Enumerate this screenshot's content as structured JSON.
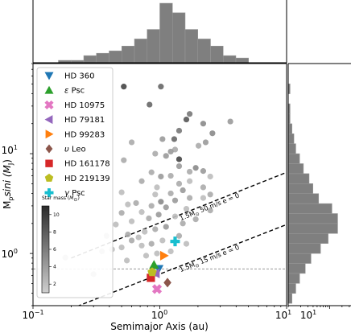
{
  "chart_data": {
    "type": "scatter",
    "xlabel": "Semimajor Axis (au)",
    "ylabel": "M_p sin i (M_J)",
    "ylabel_parts": {
      "main": "M",
      "sub": "p",
      "tail": "sini (M",
      "sub2": "J",
      "close": ")"
    },
    "xscale": "log",
    "yscale": "log",
    "xlim": [
      0.1,
      10
    ],
    "ylim": [
      0.3,
      80
    ],
    "x_ticks": [
      {
        "value": 0.1,
        "base": "10",
        "exp": "−1"
      },
      {
        "value": 1,
        "base": "10",
        "exp": "0"
      },
      {
        "value": 10,
        "base": "10",
        "exp": "1"
      }
    ],
    "y_ticks": [
      {
        "value": 1,
        "base": "10",
        "exp": "0"
      },
      {
        "value": 10,
        "base": "10",
        "exp": "1"
      }
    ],
    "ref_line": {
      "y": 0.7
    },
    "sensitivity_lines": [
      {
        "label": "1.5M⊙ 50 m/s e = 0",
        "label_parts": {
          "a": "1.5M",
          "sun": "⊙",
          "b": " 50 m/s e = 0"
        },
        "points": [
          [
            0.2,
            0.9
          ],
          [
            10,
            6.5
          ]
        ],
        "label_at": [
          2.5,
          2.8
        ]
      },
      {
        "label": "1.5M⊙ 15 m/s e = 0",
        "label_parts": {
          "a": "1.5M",
          "sun": "⊙",
          "b": " 15 m/s e = 0"
        },
        "points": [
          [
            0.2,
            0.28
          ],
          [
            10,
            1.95
          ]
        ],
        "label_at": [
          2.5,
          0.85
        ]
      }
    ],
    "background_points": [
      [
        0.52,
        47,
        9
      ],
      [
        1.02,
        47,
        7
      ],
      [
        0.83,
        31,
        7
      ],
      [
        1.72,
        25,
        6
      ],
      [
        1.62,
        22,
        8
      ],
      [
        2.2,
        20,
        5
      ],
      [
        3.6,
        21,
        4
      ],
      [
        1.42,
        17,
        6
      ],
      [
        1.05,
        14,
        4
      ],
      [
        1.3,
        14,
        7
      ],
      [
        0.6,
        13,
        3
      ],
      [
        2.6,
        16,
        5
      ],
      [
        2.3,
        13,
        4
      ],
      [
        2.02,
        12,
        3
      ],
      [
        1.32,
        11,
        3
      ],
      [
        1.22,
        10.5,
        4
      ],
      [
        0.92,
        10,
        3
      ],
      [
        1.12,
        9.5,
        4
      ],
      [
        1.42,
        8.8,
        9
      ],
      [
        0.52,
        8.6,
        3
      ],
      [
        1.42,
        7.5,
        4
      ],
      [
        1.92,
        7.2,
        5
      ],
      [
        1.72,
        6.6,
        3
      ],
      [
        2.2,
        6.7,
        4
      ],
      [
        2.5,
        5.9,
        2
      ],
      [
        0.86,
        6.5,
        3
      ],
      [
        1.22,
        6,
        3
      ],
      [
        1.02,
        5.9,
        4
      ],
      [
        1.72,
        5.3,
        2
      ],
      [
        1.42,
        5,
        3
      ],
      [
        2.2,
        4.6,
        3
      ],
      [
        0.95,
        4.6,
        2
      ],
      [
        0.72,
        5.3,
        3
      ],
      [
        1.52,
        4.3,
        4
      ],
      [
        0.5,
        4.1,
        2
      ],
      [
        1.22,
        4.0,
        3
      ],
      [
        0.92,
        3.9,
        2
      ],
      [
        2.5,
        3.9,
        3
      ],
      [
        1.72,
        3.6,
        3
      ],
      [
        2.2,
        3.6,
        2
      ],
      [
        1.32,
        3.4,
        4
      ],
      [
        1.02,
        3.3,
        5
      ],
      [
        0.65,
        3.2,
        3
      ],
      [
        0.56,
        3.1,
        2
      ],
      [
        0.86,
        3.0,
        3
      ],
      [
        1.12,
        2.9,
        4
      ],
      [
        1.62,
        2.8,
        2
      ],
      [
        2.5,
        2.7,
        3
      ],
      [
        0.72,
        2.6,
        2
      ],
      [
        0.5,
        2.55,
        3
      ],
      [
        0.98,
        2.45,
        4
      ],
      [
        1.32,
        2.35,
        2
      ],
      [
        0.82,
        2.25,
        3
      ],
      [
        1.92,
        2.2,
        3
      ],
      [
        0.6,
        2.1,
        2
      ],
      [
        1.52,
        2.0,
        3
      ],
      [
        0.45,
        1.95,
        2
      ],
      [
        1.12,
        1.85,
        4
      ],
      [
        0.92,
        1.75,
        3
      ],
      [
        0.76,
        1.65,
        2
      ],
      [
        0.56,
        1.55,
        3
      ],
      [
        0.38,
        1.5,
        2
      ],
      [
        1.42,
        1.5,
        3
      ],
      [
        0.68,
        1.45,
        2
      ],
      [
        0.6,
        1.35,
        3
      ],
      [
        1.05,
        1.35,
        2
      ],
      [
        0.86,
        1.25,
        3
      ],
      [
        0.72,
        1.2,
        2
      ],
      [
        0.5,
        1.15,
        2
      ],
      [
        0.35,
        1.05,
        2
      ],
      [
        0.95,
        1.0,
        2
      ],
      [
        0.78,
        0.95,
        2
      ],
      [
        1.22,
        1.05,
        2
      ],
      [
        0.18,
        0.91,
        2
      ],
      [
        0.3,
        0.62,
        2
      ],
      [
        0.55,
        0.85,
        2
      ],
      [
        1.62,
        1.25,
        2
      ],
      [
        0.42,
        1.1,
        2
      ]
    ],
    "highlight_stars": [
      {
        "name": "HD 360",
        "label": "HD 360",
        "marker": "triangle-down",
        "color": "#1f77b4",
        "x": 0.98,
        "y": 0.7
      },
      {
        "name": "ε Psc",
        "label_parts": {
          "greek": "ε",
          "rest": " Psc"
        },
        "marker": "triangle-up",
        "color": "#2ca02c",
        "x": 0.9,
        "y": 0.77
      },
      {
        "name": "HD 10975",
        "label": "HD 10975",
        "marker": "x",
        "color": "#e377c2",
        "x": 0.95,
        "y": 0.44
      },
      {
        "name": "HD 79181",
        "label": "HD 79181",
        "marker": "triangle-left",
        "color": "#9467bd",
        "x": 0.93,
        "y": 0.63
      },
      {
        "name": "HD 99283",
        "label": "HD 99283",
        "marker": "triangle-right",
        "color": "#ff7f0e",
        "x": 1.08,
        "y": 0.95
      },
      {
        "name": "υ Leo",
        "label_parts": {
          "greek": "υ",
          "rest": " Leo"
        },
        "marker": "diamond",
        "color": "#8c564b",
        "x": 1.15,
        "y": 0.51
      },
      {
        "name": "HD 161178",
        "label": "HD 161178",
        "marker": "square",
        "color": "#d62728",
        "x": 0.85,
        "y": 0.57
      },
      {
        "name": "HD 219139",
        "label": "HD 219139",
        "marker": "pentagon",
        "color": "#bcbd22",
        "x": 0.87,
        "y": 0.65
      },
      {
        "name": "γ Psc",
        "label_parts": {
          "greek": "γ",
          "rest": " Psc"
        },
        "marker": "plus",
        "color": "#17becf",
        "x": 1.32,
        "y": 1.32
      }
    ],
    "colorbar": {
      "title": "Star mass (M⊙)",
      "title_parts": {
        "a": "Star mass (",
        "b": "M",
        "sun": "⊙",
        "c": ")"
      },
      "ticks": [
        2,
        4,
        6,
        8,
        10
      ],
      "range": [
        1,
        11
      ]
    },
    "hist_top": {
      "bins_log10": [
        -1.0,
        -0.9,
        -0.8,
        -0.7,
        -0.6,
        -0.5,
        -0.4,
        -0.3,
        -0.2,
        -0.1,
        0.0,
        0.1,
        0.2,
        0.3,
        0.4,
        0.5,
        0.6,
        0.7,
        0.8,
        0.9,
        1.0
      ],
      "counts": [
        0,
        0,
        1,
        1,
        3,
        4,
        5,
        7,
        10,
        14,
        25,
        21,
        14,
        10,
        7,
        3,
        2,
        0,
        0,
        0
      ]
    },
    "hist_right": {
      "bins_log10": [
        -0.5,
        -0.4,
        -0.3,
        -0.2,
        -0.1,
        0.0,
        0.1,
        0.2,
        0.3,
        0.4,
        0.5,
        0.6,
        0.7,
        0.8,
        0.9,
        1.0,
        1.1,
        1.2,
        1.3,
        1.4,
        1.5,
        1.6,
        1.7
      ],
      "counts": [
        2,
        4,
        6,
        9,
        12,
        17,
        21,
        26,
        26,
        23,
        16,
        13,
        11,
        8,
        6,
        4,
        3,
        2,
        1,
        1,
        0,
        1
      ],
      "xlim": [
        0,
        33
      ],
      "x_ticks": [
        {
          "value": 10,
          "base": "10",
          "exp": "1"
        }
      ]
    }
  }
}
